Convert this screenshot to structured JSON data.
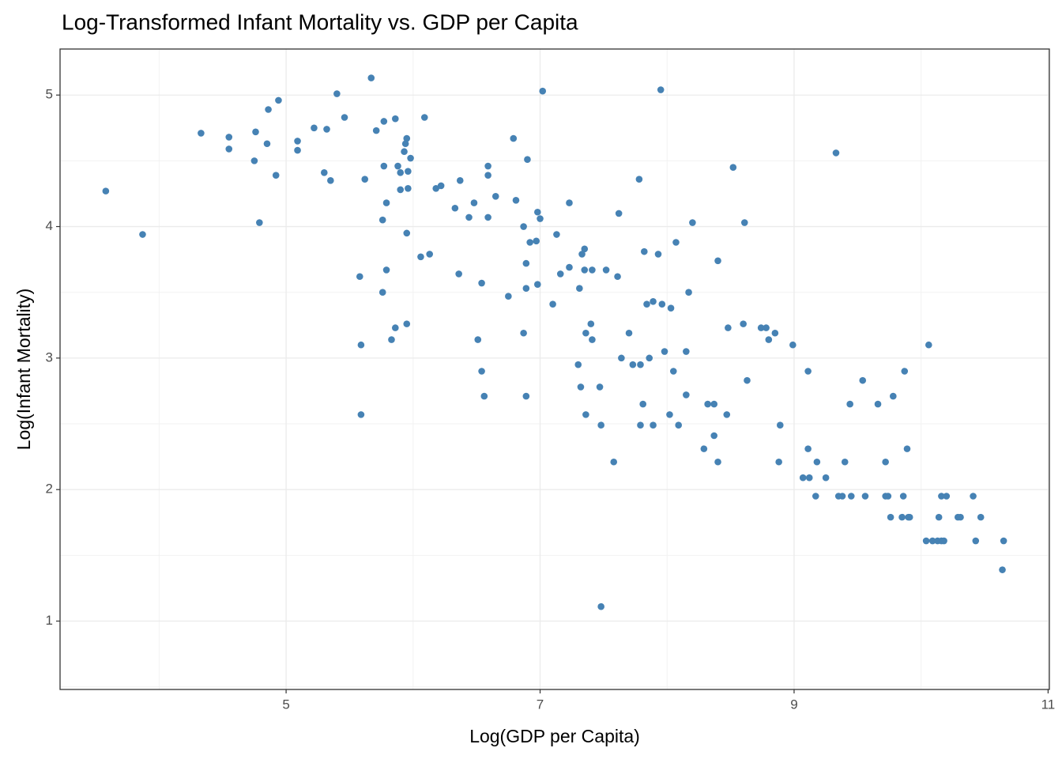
{
  "chart_data": {
    "type": "scatter",
    "title": "Log-Transformed Infant Mortality vs. GDP per Capita",
    "x_label": "Log(GDP per Capita)",
    "y_label": "Log(Infant Mortality)",
    "color": "#4682b4",
    "grid": true,
    "xlim": [
      3.22,
      11.01
    ],
    "ylim": [
      0.48,
      5.35
    ],
    "xticks": [
      5,
      7,
      9,
      11
    ],
    "yticks": [
      1,
      2,
      3,
      4,
      5
    ],
    "x": [
      3.58,
      3.87,
      4.33,
      4.55,
      4.55,
      4.75,
      4.76,
      4.79,
      4.85,
      4.86,
      4.92,
      4.94,
      5.09,
      5.09,
      5.22,
      5.3,
      5.32,
      5.35,
      5.4,
      5.46,
      5.58,
      5.59,
      5.59,
      5.62,
      5.67,
      5.71,
      5.76,
      5.76,
      5.77,
      5.77,
      5.79,
      5.79,
      5.83,
      5.86,
      5.86,
      5.88,
      5.9,
      5.9,
      5.93,
      5.94,
      5.95,
      5.95,
      5.95,
      5.96,
      5.96,
      5.98,
      6.06,
      6.09,
      6.13,
      6.18,
      6.22,
      6.33,
      6.36,
      6.37,
      6.44,
      6.48,
      6.51,
      6.54,
      6.54,
      6.56,
      6.59,
      6.59,
      6.59,
      6.65,
      6.75,
      6.79,
      6.81,
      6.87,
      6.87,
      6.89,
      6.89,
      6.89,
      6.9,
      6.92,
      6.97,
      6.98,
      6.98,
      7.0,
      7.02,
      7.1,
      7.13,
      7.16,
      7.23,
      7.23,
      7.3,
      7.31,
      7.32,
      7.33,
      7.35,
      7.35,
      7.36,
      7.36,
      7.4,
      7.41,
      7.41,
      7.47,
      7.48,
      7.48,
      7.52,
      7.58,
      7.61,
      7.62,
      7.64,
      7.7,
      7.73,
      7.78,
      7.79,
      7.79,
      7.81,
      7.82,
      7.84,
      7.86,
      7.89,
      7.89,
      7.93,
      7.95,
      7.96,
      7.98,
      8.02,
      8.03,
      8.05,
      8.07,
      8.09,
      8.15,
      8.15,
      8.17,
      8.2,
      8.29,
      8.32,
      8.37,
      8.37,
      8.4,
      8.4,
      8.47,
      8.48,
      8.52,
      8.6,
      8.61,
      8.63,
      8.74,
      8.78,
      8.8,
      8.85,
      8.88,
      8.89,
      8.99,
      9.07,
      9.11,
      9.11,
      9.12,
      9.18,
      9.17,
      9.25,
      9.33,
      9.35,
      9.38,
      9.4,
      9.44,
      9.45,
      9.54,
      9.56,
      9.66,
      9.72,
      9.72,
      9.74,
      9.76,
      9.78,
      9.85,
      9.86,
      9.87,
      9.89,
      9.9,
      9.91,
      10.04,
      10.06,
      10.09,
      10.13,
      10.14,
      10.16,
      10.16,
      10.18,
      10.2,
      10.29,
      10.31,
      10.41,
      10.43,
      10.47,
      10.64,
      10.65
    ],
    "values": [
      4.27,
      3.94,
      4.71,
      4.68,
      4.59,
      4.5,
      4.72,
      4.03,
      4.63,
      4.89,
      4.39,
      4.96,
      4.65,
      4.58,
      4.75,
      4.41,
      4.74,
      4.35,
      5.01,
      4.83,
      3.62,
      3.1,
      2.57,
      4.36,
      5.13,
      4.73,
      4.05,
      3.5,
      4.46,
      4.8,
      3.67,
      4.18,
      3.14,
      4.82,
      3.23,
      4.46,
      4.28,
      4.41,
      4.57,
      4.63,
      3.26,
      4.67,
      3.95,
      4.42,
      4.29,
      4.52,
      3.77,
      4.83,
      3.79,
      4.29,
      4.31,
      4.14,
      3.64,
      4.35,
      4.07,
      4.18,
      3.14,
      3.57,
      2.9,
      2.71,
      4.07,
      4.46,
      4.39,
      4.23,
      3.47,
      4.67,
      4.2,
      4.0,
      3.19,
      3.72,
      3.53,
      2.71,
      4.51,
      3.88,
      3.89,
      4.11,
      3.56,
      4.06,
      5.03,
      3.41,
      3.94,
      3.64,
      3.69,
      4.18,
      2.95,
      3.53,
      2.78,
      3.79,
      3.83,
      3.67,
      3.19,
      2.57,
      3.26,
      3.67,
      3.14,
      2.78,
      2.49,
      1.11,
      3.67,
      2.21,
      3.62,
      4.1,
      3.0,
      3.19,
      2.95,
      4.36,
      2.95,
      2.49,
      2.65,
      3.81,
      3.41,
      3.0,
      3.43,
      2.49,
      3.79,
      5.04,
      3.41,
      3.05,
      2.57,
      3.38,
      2.9,
      3.88,
      2.49,
      3.05,
      2.72,
      3.5,
      4.03,
      2.31,
      2.65,
      2.65,
      2.41,
      2.21,
      3.74,
      2.57,
      3.23,
      4.45,
      3.26,
      4.03,
      2.83,
      3.23,
      3.23,
      3.14,
      3.19,
      2.21,
      2.49,
      3.1,
      2.09,
      2.31,
      2.9,
      2.09,
      2.21,
      1.95,
      2.09,
      4.56,
      1.95,
      1.95,
      2.21,
      2.65,
      1.95,
      2.83,
      1.95,
      2.65,
      2.21,
      1.95,
      1.95,
      1.79,
      2.71,
      1.79,
      1.95,
      2.9,
      2.31,
      1.79,
      1.79,
      1.61,
      3.1,
      1.61,
      1.61,
      1.79,
      1.95,
      1.61,
      1.61,
      1.95,
      1.79,
      1.79,
      1.95,
      1.61,
      1.79,
      1.39,
      1.61
    ]
  }
}
